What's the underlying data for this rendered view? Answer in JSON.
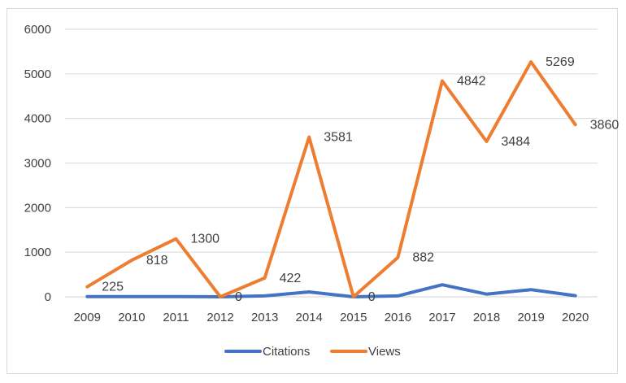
{
  "chart_data": {
    "type": "line",
    "categories": [
      "2009",
      "2010",
      "2011",
      "2012",
      "2013",
      "2014",
      "2015",
      "2016",
      "2017",
      "2018",
      "2019",
      "2020"
    ],
    "ylim": [
      0,
      6000
    ],
    "yticks": [
      0,
      1000,
      2000,
      3000,
      4000,
      5000,
      6000
    ],
    "grid": true,
    "legend_position": "bottom",
    "series": [
      {
        "name": "Citations",
        "color": "#4472c4",
        "values": [
          5,
          5,
          5,
          0,
          20,
          110,
          0,
          20,
          270,
          60,
          160,
          25
        ]
      },
      {
        "name": "Views",
        "color": "#ed7d31",
        "values": [
          225,
          818,
          1300,
          0,
          422,
          3581,
          0,
          882,
          4842,
          3484,
          5269,
          3860
        ],
        "data_labels": [
          "225",
          "818",
          "1300",
          "0",
          "422",
          "3581",
          "0",
          "882",
          "4842",
          "3484",
          "5269",
          "3860"
        ]
      }
    ]
  }
}
